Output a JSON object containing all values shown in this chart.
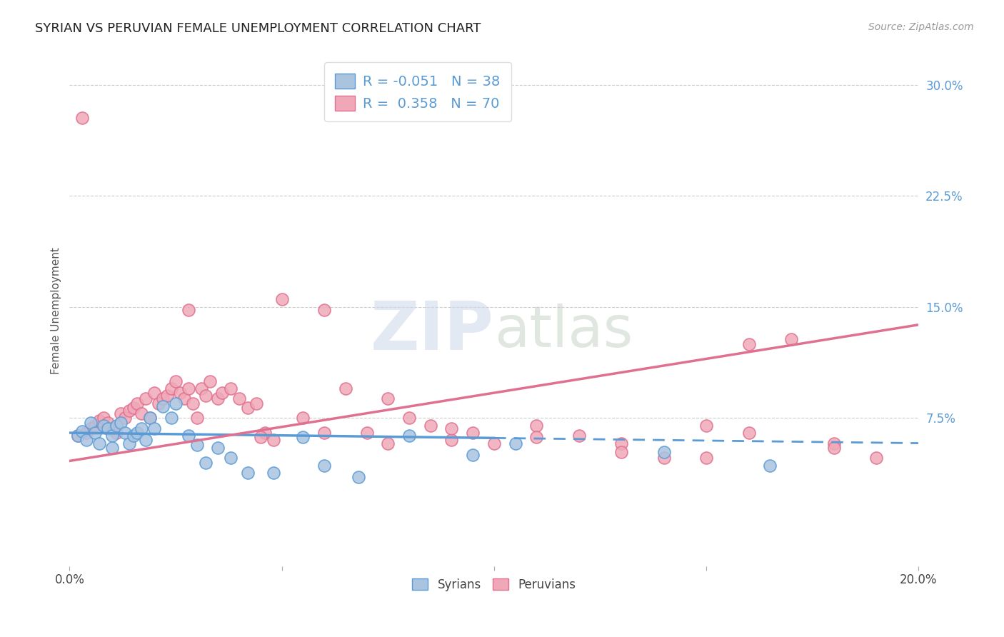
{
  "title": "SYRIAN VS PERUVIAN FEMALE UNEMPLOYMENT CORRELATION CHART",
  "source": "Source: ZipAtlas.com",
  "ylabel": "Female Unemployment",
  "right_yticks": [
    "30.0%",
    "22.5%",
    "15.0%",
    "7.5%"
  ],
  "right_ytick_vals": [
    0.3,
    0.225,
    0.15,
    0.075
  ],
  "xlim": [
    0.0,
    0.2
  ],
  "ylim": [
    -0.025,
    0.32
  ],
  "syrian_color": "#aac4e0",
  "peruvian_color": "#f0a8b8",
  "syrian_line_color": "#5b9bd5",
  "peruvian_line_color": "#e07090",
  "syrian_R": -0.051,
  "syrian_N": 38,
  "peruvian_R": 0.358,
  "peruvian_N": 70,
  "legend_label_syrian": "Syrians",
  "legend_label_peruvian": "Peruvians",
  "background_color": "#ffffff",
  "grid_color": "#cccccc",
  "syrian_line_x0": 0.0,
  "syrian_line_y0": 0.065,
  "syrian_line_x1": 0.2,
  "syrian_line_y1": 0.058,
  "syrian_line_dash_start": 0.1,
  "peruvian_line_x0": 0.0,
  "peruvian_line_y0": 0.046,
  "peruvian_line_x1": 0.2,
  "peruvian_line_y1": 0.138,
  "syrian_scatter_x": [
    0.002,
    0.003,
    0.004,
    0.005,
    0.006,
    0.007,
    0.008,
    0.009,
    0.01,
    0.01,
    0.011,
    0.012,
    0.013,
    0.014,
    0.015,
    0.016,
    0.017,
    0.018,
    0.019,
    0.02,
    0.022,
    0.024,
    0.025,
    0.028,
    0.03,
    0.032,
    0.035,
    0.038,
    0.042,
    0.048,
    0.055,
    0.06,
    0.068,
    0.08,
    0.095,
    0.105,
    0.14,
    0.165
  ],
  "syrian_scatter_y": [
    0.063,
    0.066,
    0.06,
    0.072,
    0.065,
    0.058,
    0.07,
    0.068,
    0.063,
    0.055,
    0.07,
    0.072,
    0.065,
    0.058,
    0.063,
    0.065,
    0.068,
    0.06,
    0.075,
    0.068,
    0.083,
    0.075,
    0.085,
    0.063,
    0.057,
    0.045,
    0.055,
    0.048,
    0.038,
    0.038,
    0.062,
    0.043,
    0.035,
    0.063,
    0.05,
    0.058,
    0.052,
    0.043
  ],
  "peruvian_scatter_x": [
    0.002,
    0.003,
    0.004,
    0.005,
    0.006,
    0.007,
    0.008,
    0.009,
    0.01,
    0.011,
    0.012,
    0.013,
    0.014,
    0.015,
    0.016,
    0.017,
    0.018,
    0.019,
    0.02,
    0.021,
    0.022,
    0.023,
    0.024,
    0.025,
    0.026,
    0.027,
    0.028,
    0.029,
    0.03,
    0.031,
    0.032,
    0.033,
    0.035,
    0.036,
    0.038,
    0.04,
    0.042,
    0.044,
    0.046,
    0.048,
    0.05,
    0.055,
    0.06,
    0.065,
    0.07,
    0.075,
    0.08,
    0.085,
    0.09,
    0.095,
    0.1,
    0.11,
    0.12,
    0.13,
    0.14,
    0.15,
    0.16,
    0.17,
    0.18,
    0.19,
    0.028,
    0.045,
    0.06,
    0.075,
    0.09,
    0.11,
    0.13,
    0.15,
    0.16,
    0.18
  ],
  "peruvian_scatter_y": [
    0.063,
    0.278,
    0.065,
    0.068,
    0.07,
    0.073,
    0.075,
    0.072,
    0.068,
    0.065,
    0.078,
    0.075,
    0.08,
    0.082,
    0.085,
    0.078,
    0.088,
    0.075,
    0.092,
    0.085,
    0.088,
    0.09,
    0.095,
    0.1,
    0.092,
    0.088,
    0.095,
    0.085,
    0.075,
    0.095,
    0.09,
    0.1,
    0.088,
    0.092,
    0.095,
    0.088,
    0.082,
    0.085,
    0.065,
    0.06,
    0.155,
    0.075,
    0.148,
    0.095,
    0.065,
    0.088,
    0.075,
    0.07,
    0.06,
    0.065,
    0.058,
    0.07,
    0.063,
    0.058,
    0.048,
    0.07,
    0.065,
    0.128,
    0.058,
    0.048,
    0.148,
    0.062,
    0.065,
    0.058,
    0.068,
    0.062,
    0.052,
    0.048,
    0.125,
    0.055
  ]
}
